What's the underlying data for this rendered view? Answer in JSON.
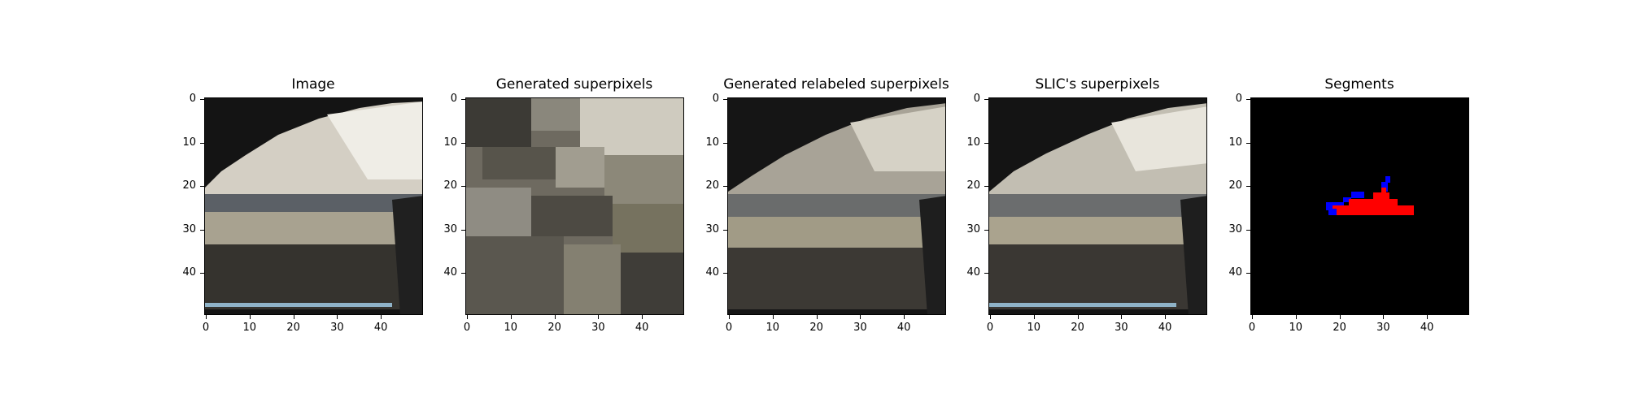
{
  "panels": [
    {
      "title": "Image"
    },
    {
      "title": "Generated superpixels"
    },
    {
      "title": "Generated relabeled superpixels"
    },
    {
      "title": "SLIC's superpixels"
    },
    {
      "title": "Segments"
    }
  ],
  "axes": {
    "x_ticks": [
      "0",
      "10",
      "20",
      "30",
      "40"
    ],
    "y_ticks": [
      "0",
      "10",
      "20",
      "30",
      "40"
    ]
  },
  "colors": {
    "background": "#000000",
    "segment_fill": "#ff0000",
    "segment_outline": "#0000ff"
  }
}
